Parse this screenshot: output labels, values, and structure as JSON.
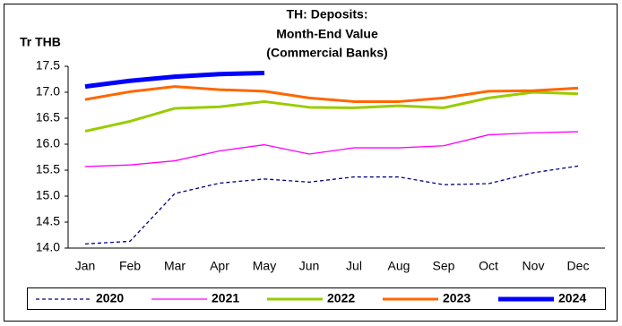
{
  "chart_data": {
    "type": "line",
    "title": [
      "TH: Deposits:",
      "Month-End Value",
      "(Commercial Banks)"
    ],
    "y_label": "Tr THB",
    "categories": [
      "Jan",
      "Feb",
      "Mar",
      "Apr",
      "May",
      "Jun",
      "Jul",
      "Aug",
      "Sep",
      "Oct",
      "Nov",
      "Dec"
    ],
    "ylim": [
      14.0,
      17.5
    ],
    "yticks": [
      {
        "value": 14.0,
        "label": "14.0"
      },
      14.5,
      {
        "value": 15.0,
        "label": "15.0"
      },
      15.5,
      {
        "value": 16.0,
        "label": "16.0"
      },
      16.5,
      {
        "value": 17.0,
        "label": "17.0"
      },
      17.5
    ],
    "legend": "bottom",
    "series": [
      {
        "name": "2020",
        "color": "#000080",
        "width": 1.3,
        "dashed": true,
        "values": [
          14.08,
          14.13,
          15.05,
          15.25,
          15.33,
          15.27,
          15.37,
          15.37,
          15.22,
          15.24,
          15.45,
          15.58
        ]
      },
      {
        "name": "2021",
        "color": "#ff00ff",
        "width": 1.3,
        "dashed": false,
        "values": [
          15.57,
          15.6,
          15.68,
          15.87,
          15.99,
          15.81,
          15.93,
          15.93,
          15.97,
          16.18,
          16.22,
          16.24
        ]
      },
      {
        "name": "2022",
        "color": "#99cc00",
        "width": 3,
        "dashed": false,
        "values": [
          16.25,
          16.44,
          16.69,
          16.72,
          16.82,
          16.71,
          16.7,
          16.74,
          16.7,
          16.89,
          17.0,
          16.97
        ]
      },
      {
        "name": "2023",
        "color": "#ff6600",
        "width": 3,
        "dashed": false,
        "values": [
          16.86,
          17.01,
          17.11,
          17.05,
          17.02,
          16.89,
          16.82,
          16.82,
          16.89,
          17.02,
          17.03,
          17.08
        ]
      },
      {
        "name": "2024",
        "color": "#0000ff",
        "width": 5,
        "dashed": false,
        "values": [
          17.11,
          17.22,
          17.3,
          17.35,
          17.37,
          null,
          null,
          null,
          null,
          null,
          null,
          null
        ]
      }
    ]
  }
}
